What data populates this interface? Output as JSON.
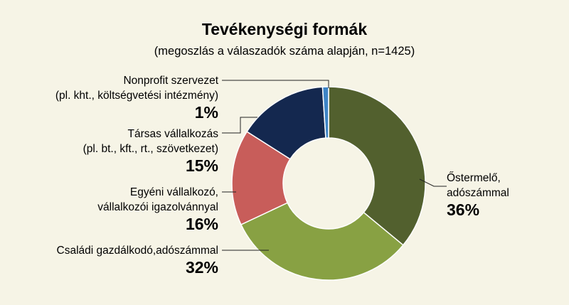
{
  "chart_data": {
    "type": "pie",
    "donut": true,
    "title": "Tevékenységi formák",
    "subtitle": "(megoszlás a válaszadók száma alapján, n=1425)",
    "slices": [
      {
        "lines": [
          "Őstermelő,",
          "adószámmal"
        ],
        "percent_label": "36%",
        "value": 36,
        "color": "#52602e"
      },
      {
        "lines": [
          "Családi gazdálkodó,adószámmal"
        ],
        "percent_label": "32%",
        "value": 32,
        "color": "#88a143"
      },
      {
        "lines": [
          "Egyéni vállalkozó,",
          "vállalkozói igazolvánnyal"
        ],
        "percent_label": "16%",
        "value": 16,
        "color": "#c85d5a"
      },
      {
        "lines": [
          "Társas vállalkozás",
          "(pl. bt., kft., rt., szövetkezet)"
        ],
        "percent_label": "15%",
        "value": 15,
        "color": "#14284f"
      },
      {
        "lines": [
          "Nonprofit szervezet",
          "(pl. kht., költségvetési intézmény)"
        ],
        "percent_label": "1%",
        "value": 1,
        "color": "#3d84c6"
      }
    ]
  }
}
